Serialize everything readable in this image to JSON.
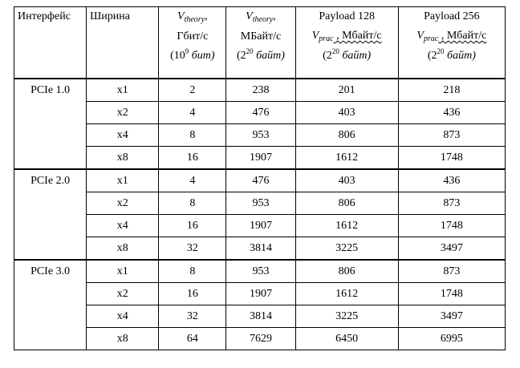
{
  "headers": {
    "interface": "Интерфейс",
    "width": "Ширина",
    "vtheory_gbit": {
      "symbol": "V",
      "sub": "theory",
      "punct": ",",
      "unit": "Гбит/с",
      "note_open": "(10",
      "note_sup": "9",
      "note_rest": " бит)"
    },
    "vtheory_mbyte": {
      "symbol": "V",
      "sub": "theory",
      "punct": ",",
      "unit": "МБайт/с",
      "note_open": "(2",
      "note_sup": "20",
      "note_rest": " байт)"
    },
    "payload128": {
      "title": "Payload 128",
      "symbol": "V",
      "sub": "prac",
      "unit": " , Мбайт/с",
      "note_open": "(2",
      "note_sup": "20",
      "note_rest": " байт)"
    },
    "payload256": {
      "title": "Payload 256",
      "symbol": "V",
      "sub": "prac",
      "unit": " , Мбайт/с",
      "note_open": "(2",
      "note_sup": "20",
      "note_rest": " байт)"
    }
  },
  "groups": [
    {
      "interface": "PCIe 1.0",
      "rows": [
        [
          "x1",
          "2",
          "238",
          "201",
          "218"
        ],
        [
          "x2",
          "4",
          "476",
          "403",
          "436"
        ],
        [
          "x4",
          "8",
          "953",
          "806",
          "873"
        ],
        [
          "x8",
          "16",
          "1907",
          "1612",
          "1748"
        ]
      ]
    },
    {
      "interface": "PCIe 2.0",
      "rows": [
        [
          "x1",
          "4",
          "476",
          "403",
          "436"
        ],
        [
          "x2",
          "8",
          "953",
          "806",
          "873"
        ],
        [
          "x4",
          "16",
          "1907",
          "1612",
          "1748"
        ],
        [
          "x8",
          "32",
          "3814",
          "3225",
          "3497"
        ]
      ]
    },
    {
      "interface": "PCIe 3.0",
      "rows": [
        [
          "x1",
          "8",
          "953",
          "806",
          "873"
        ],
        [
          "x2",
          "16",
          "1907",
          "1612",
          "1748"
        ],
        [
          "x4",
          "32",
          "3814",
          "3225",
          "3497"
        ],
        [
          "x8",
          "64",
          "7629",
          "6450",
          "6995"
        ]
      ]
    }
  ]
}
